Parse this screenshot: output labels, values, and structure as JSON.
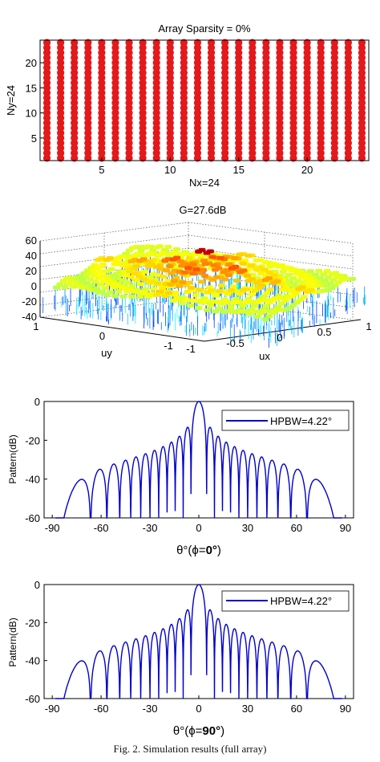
{
  "figure": {
    "caption": "Fig. 2. Simulation results (full array)"
  },
  "chart_data": [
    {
      "type": "scatter",
      "title": "Array Sparsity = 0%",
      "xlabel": "Nx=24",
      "ylabel": "Ny=24",
      "x_ticks": [
        5,
        10,
        15,
        20
      ],
      "y_ticks": [
        5,
        10,
        15,
        20
      ],
      "xlim": [
        0.5,
        24.5
      ],
      "ylim": [
        0.5,
        24.5
      ],
      "nx": 24,
      "ny": 24,
      "marker_color": "#e3191c"
    },
    {
      "type": "surface",
      "title": "G=27.6dB",
      "xlabel": "ux",
      "ylabel": "uy",
      "z_ticks": [
        60,
        40,
        20,
        0,
        -20,
        -40
      ],
      "ux_ticks": [
        "-1",
        "-0.5",
        "0",
        "0.5",
        "1"
      ],
      "uy_ticks": [
        "1",
        "0",
        "-1"
      ],
      "zlim": [
        -40,
        60
      ],
      "peak_db": 27.6,
      "colormap": "jet"
    },
    {
      "type": "line",
      "xlabel_symbol": "θ°(ϕ=",
      "xlabel_value": "0°",
      "xlabel_close": ")",
      "ylabel": "Pattern(dB)",
      "x_ticks": [
        -90,
        -60,
        -30,
        0,
        30,
        60,
        90
      ],
      "y_ticks": [
        0,
        -20,
        -40,
        -60
      ],
      "xlim": [
        -95,
        95
      ],
      "ylim": [
        -60,
        0
      ],
      "legend": "HPBW=4.22°",
      "legend_position": "top-right",
      "line_color": "#0000cc",
      "side_lobe_peaks_db": [
        -15.2,
        -18.8,
        -21.6,
        -23.8,
        -25.4,
        -26.6,
        -27.4,
        -27.9,
        -28.3,
        -28.6,
        -28.8,
        -29.0,
        -29.1,
        -29.2,
        -29.3,
        -29.4,
        -29.5,
        -27.6,
        -25.0,
        -27.0,
        -30.0,
        -34.0,
        -40.0
      ]
    },
    {
      "type": "line",
      "xlabel_symbol": "θ°(ϕ=",
      "xlabel_value": "90°",
      "xlabel_close": ")",
      "ylabel": "Pattern(dB)",
      "x_ticks": [
        -90,
        -60,
        -30,
        0,
        30,
        60,
        90
      ],
      "y_ticks": [
        0,
        -20,
        -40,
        -60
      ],
      "xlim": [
        -95,
        95
      ],
      "ylim": [
        -60,
        0
      ],
      "legend": "HPBW=4.22°",
      "legend_position": "top-right",
      "line_color": "#0000cc",
      "side_lobe_peaks_db": [
        -15.2,
        -18.8,
        -21.6,
        -23.8,
        -25.4,
        -26.6,
        -27.4,
        -27.9,
        -28.3,
        -28.6,
        -28.8,
        -29.0,
        -29.1,
        -29.2,
        -29.3,
        -29.4,
        -29.5,
        -27.6,
        -25.0,
        -27.0,
        -30.0,
        -34.0,
        -40.0
      ]
    }
  ]
}
